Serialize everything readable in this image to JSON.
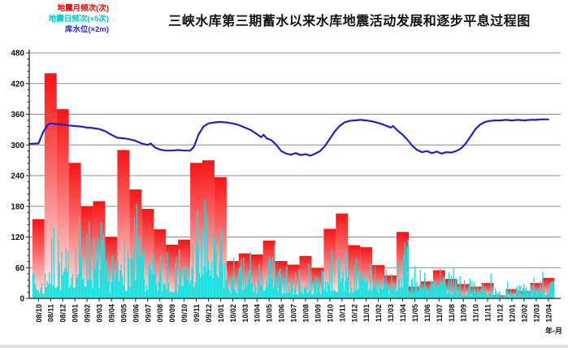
{
  "title": "三峡水库第三期蓄水以来水库地震活动发展和逐步平息过程图",
  "legend": [
    {
      "label": "地震月频次(次)",
      "color": "#f00000"
    },
    {
      "label": "地震日频次(×5次)",
      "color": "#00c8c8"
    },
    {
      "label": "库水位(×2m)",
      "color": "#2828e0"
    }
  ],
  "x_axis_unit": "年-月",
  "colors": {
    "bar_top": "#f81414",
    "bar_mid": "#f96060",
    "bar_bottom": "#fef2f2",
    "daily_spikes": "#14e2e2",
    "water_line": "#2020c8",
    "gridline": "#8c8c8c",
    "axis": "#222222"
  },
  "chart_data": {
    "type": "combo",
    "title": "三峡水库第三期蓄水以来水库地震活动发展和逐步平息过程图",
    "xlabel": "年-月",
    "ylabel": "",
    "ylim": [
      0,
      480
    ],
    "yticks": [
      0,
      60,
      120,
      180,
      240,
      300,
      360,
      420,
      480
    ],
    "y_minor_step": 12,
    "grid": true,
    "legend_position": "top-left",
    "categories": [
      "08/10",
      "08/11",
      "08/12",
      "09/01",
      "09/02",
      "09/03",
      "09/04",
      "09/05",
      "09/06",
      "09/07",
      "09/08",
      "09/09",
      "09/10",
      "09/11",
      "09/12",
      "10/01",
      "10/02",
      "10/03",
      "10/04",
      "10/05",
      "10/06",
      "10/07",
      "10/08",
      "10/09",
      "10/10",
      "10/11",
      "10/12",
      "11/01",
      "11/02",
      "11/03",
      "11/04",
      "11/05",
      "11/06",
      "11/07",
      "11/08",
      "11/09",
      "11/10",
      "11/11",
      "11/12",
      "12/01",
      "12/02",
      "12/03",
      "12/04"
    ],
    "series": [
      {
        "name": "地震月频次(次)",
        "type": "bar",
        "values": [
          155,
          440,
          370,
          265,
          180,
          190,
          120,
          290,
          213,
          175,
          135,
          105,
          115,
          265,
          270,
          237,
          73,
          88,
          86,
          113,
          73,
          66,
          83,
          59,
          136,
          166,
          104,
          100,
          65,
          45,
          130,
          23,
          33,
          55,
          38,
          28,
          23,
          30,
          6,
          18,
          14,
          30,
          40
        ]
      },
      {
        "name": "地震日频次(×5次)",
        "type": "spikes",
        "note": "dense daily spikes, approximated by per-month peak envelope",
        "monthly_peak_envelope": [
          55,
          140,
          120,
          170,
          165,
          155,
          90,
          120,
          185,
          100,
          85,
          95,
          100,
          175,
          195,
          140,
          80,
          95,
          70,
          110,
          70,
          60,
          70,
          60,
          95,
          100,
          85,
          70,
          65,
          60,
          125,
          70,
          55,
          60,
          60,
          45,
          40,
          50,
          20,
          35,
          30,
          45,
          55
        ],
        "spikes_per_month": 11,
        "seed": 7
      },
      {
        "name": "库水位(×2m)",
        "type": "line",
        "points": [
          [
            -0.75,
            302
          ],
          [
            0,
            303
          ],
          [
            0.4,
            326
          ],
          [
            0.8,
            340
          ],
          [
            1,
            342
          ],
          [
            1.5,
            341
          ],
          [
            2,
            340
          ],
          [
            2.5,
            338
          ],
          [
            3,
            337
          ],
          [
            3.5,
            336
          ],
          [
            4,
            334
          ],
          [
            4.5,
            333
          ],
          [
            5,
            331
          ],
          [
            5.5,
            327
          ],
          [
            6,
            320
          ],
          [
            6.5,
            314
          ],
          [
            7,
            313
          ],
          [
            7.5,
            311
          ],
          [
            8,
            308
          ],
          [
            8.5,
            303
          ],
          [
            9,
            300
          ],
          [
            9.25,
            303
          ],
          [
            9.6,
            295
          ],
          [
            10,
            291
          ],
          [
            10.5,
            289
          ],
          [
            11,
            289
          ],
          [
            11.5,
            290
          ],
          [
            12,
            289
          ],
          [
            12.5,
            289
          ],
          [
            12.8,
            296
          ],
          [
            13.2,
            321
          ],
          [
            13.6,
            336
          ],
          [
            14,
            342
          ],
          [
            14.5,
            344
          ],
          [
            15,
            345
          ],
          [
            15.5,
            344
          ],
          [
            16,
            342
          ],
          [
            16.5,
            339
          ],
          [
            17,
            334
          ],
          [
            17.5,
            329
          ],
          [
            18,
            321
          ],
          [
            18.35,
            315
          ],
          [
            18.55,
            320
          ],
          [
            18.8,
            313
          ],
          [
            19.2,
            309
          ],
          [
            19.6,
            300
          ],
          [
            20,
            288
          ],
          [
            20.4,
            283
          ],
          [
            20.8,
            281
          ],
          [
            21.2,
            284
          ],
          [
            21.6,
            280
          ],
          [
            22,
            282
          ],
          [
            22.4,
            279
          ],
          [
            22.8,
            283
          ],
          [
            23.2,
            288
          ],
          [
            23.6,
            298
          ],
          [
            24,
            312
          ],
          [
            24.4,
            326
          ],
          [
            24.8,
            337
          ],
          [
            25.2,
            344
          ],
          [
            25.6,
            347
          ],
          [
            26,
            348
          ],
          [
            26.5,
            349
          ],
          [
            27,
            348
          ],
          [
            27.5,
            346
          ],
          [
            28,
            343
          ],
          [
            28.5,
            339
          ],
          [
            29,
            334
          ],
          [
            29.2,
            337
          ],
          [
            29.5,
            330
          ],
          [
            30,
            320
          ],
          [
            30.4,
            310
          ],
          [
            30.8,
            298
          ],
          [
            31.2,
            290
          ],
          [
            31.6,
            286
          ],
          [
            32,
            288
          ],
          [
            32.4,
            284
          ],
          [
            32.8,
            287
          ],
          [
            33.2,
            283
          ],
          [
            33.6,
            286
          ],
          [
            34,
            285
          ],
          [
            34.4,
            288
          ],
          [
            34.8,
            293
          ],
          [
            35.2,
            303
          ],
          [
            35.6,
            317
          ],
          [
            36,
            331
          ],
          [
            36.4,
            340
          ],
          [
            36.8,
            345
          ],
          [
            37.2,
            347
          ],
          [
            37.6,
            348
          ],
          [
            38,
            348
          ],
          [
            38.5,
            349
          ],
          [
            39,
            348
          ],
          [
            39.5,
            349
          ],
          [
            40,
            348
          ],
          [
            40.5,
            349
          ],
          [
            41,
            349
          ],
          [
            41.5,
            350
          ],
          [
            42,
            350
          ]
        ]
      }
    ]
  }
}
